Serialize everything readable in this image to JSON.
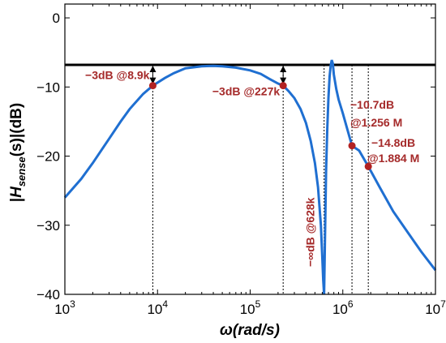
{
  "chart_data": {
    "type": "line",
    "xlabel": "ω(rad/s)",
    "ylabel": "|Hsense(s)|(dB)",
    "ylabel_parts": {
      "pre": "|",
      "var": "H",
      "sub": "sense",
      "post": "(s)|(dB)"
    },
    "xlim": [
      1000,
      10000000
    ],
    "ylim": [
      -40,
      2
    ],
    "xscale": "log",
    "x_ticks": [
      {
        "value": 1000,
        "base": "10",
        "exp": "3"
      },
      {
        "value": 10000,
        "base": "10",
        "exp": "4"
      },
      {
        "value": 100000,
        "base": "10",
        "exp": "5"
      },
      {
        "value": 1000000,
        "base": "10",
        "exp": "6"
      },
      {
        "value": 10000000,
        "base": "10",
        "exp": "7"
      }
    ],
    "y_ticks": [
      {
        "value": 0,
        "label": "0"
      },
      {
        "value": -10,
        "label": "−10"
      },
      {
        "value": -20,
        "label": "−20"
      },
      {
        "value": -30,
        "label": "−30"
      },
      {
        "value": -40,
        "label": "−40"
      }
    ],
    "reference_level_db": -6.8,
    "series": [
      {
        "color": "#1f6fd1",
        "x": [
          1000,
          1500,
          2000,
          3000,
          4000,
          5000,
          6000,
          7000,
          8900,
          12000,
          15000,
          20000,
          30000,
          40000,
          50000,
          70000,
          100000,
          130000,
          160000,
          200000,
          227000,
          260000,
          300000,
          350000,
          400000,
          450000,
          500000,
          540000,
          580000,
          600000,
          615000,
          628000,
          640000,
          660000,
          680000,
          700000,
          720000,
          740000,
          760000,
          780000,
          800000,
          850000,
          900000,
          1000000,
          1256000,
          1500000,
          1884000,
          2500000,
          3500000,
          5000000,
          7000000,
          10000000
        ],
        "y": [
          -26,
          -23.3,
          -21,
          -17.5,
          -15,
          -13.2,
          -12,
          -11,
          -9.8,
          -8.7,
          -8,
          -7.3,
          -7,
          -6.95,
          -7,
          -7.2,
          -7.6,
          -8.1,
          -8.8,
          -9.5,
          -9.8,
          -10.6,
          -11.6,
          -13.2,
          -15.2,
          -17.8,
          -21,
          -24.5,
          -30,
          -34.5,
          -38,
          -40,
          -33,
          -22,
          -16,
          -11.5,
          -8.5,
          -6.9,
          -6.1,
          -6.6,
          -8.2,
          -10.3,
          -11.8,
          -13.8,
          -18.5,
          -19.2,
          -21.5,
          -24.5,
          -28,
          -31,
          -33.8,
          -36.5
        ]
      }
    ],
    "annotations": [
      {
        "label": "−3dB @8.9k",
        "x": 8900,
        "y": -9.8,
        "arrow": true
      },
      {
        "label": "−3dB @227k",
        "x": 227000,
        "y": -9.8,
        "arrow": true
      },
      {
        "label": "−∞dB @628k",
        "x": 628000,
        "y": -40,
        "arrow": false,
        "rotated": true
      },
      {
        "label_lines": [
          "−10.7dB",
          "@1.256 M"
        ],
        "x": 1256000,
        "y": -18.5,
        "arrow": false
      },
      {
        "label_lines": [
          "−14.8dB",
          "@1.884 M"
        ],
        "x": 1884000,
        "y": -21.5,
        "arrow": false
      }
    ]
  }
}
